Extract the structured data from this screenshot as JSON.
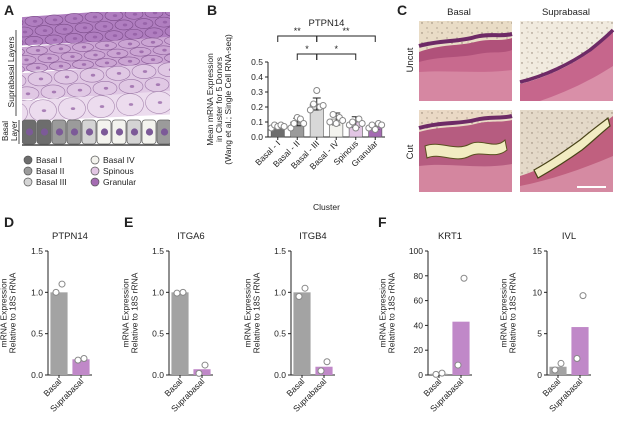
{
  "panels": {
    "A": {
      "letter": "A",
      "suprabasal_layers": "Suprabasal Layers",
      "basal_layer": "Basal\nLayer",
      "legend": [
        {
          "label": "Basal I",
          "color": "#6d6d6d"
        },
        {
          "label": "Basal II",
          "color": "#9b9b9b"
        },
        {
          "label": "Basal III",
          "color": "#d4d4d4"
        },
        {
          "label": "Basal IV",
          "color": "#f3f3ee"
        },
        {
          "label": "Spinous",
          "color": "#e2c6e4"
        },
        {
          "label": "Granular",
          "color": "#a46bb2"
        }
      ]
    },
    "B": {
      "letter": "B"
    },
    "C": {
      "letter": "C",
      "col_basal": "Basal",
      "col_suprabasal": "Suprabasal",
      "row_uncut": "Uncut",
      "row_cut": "Cut"
    },
    "D": {
      "letter": "D"
    },
    "E": {
      "letter": "E"
    },
    "F": {
      "letter": "F"
    }
  },
  "colors": {
    "gray": "#a3a3a3",
    "purple": "#c088c8",
    "light_gray": "#dcdcdc"
  },
  "chart_data": [
    {
      "id": "B",
      "type": "bar",
      "title": "PTPN14",
      "xlabel": "Cluster",
      "ylabel": "Mean mRNA Expression\nin Cluster for 5 Donors\n(Wang et al.; Single Cell RNA-seq)",
      "categories": [
        "Basal - I",
        "Basal - II",
        "Basal - III",
        "Basal - IV",
        "Spinous",
        "Granular"
      ],
      "bar_colors": [
        "#6d6d6d",
        "#9b9b9b",
        "#d8d8d8",
        "#f3f3ee",
        "#e2c6e4",
        "#a46bb2"
      ],
      "values": [
        0.07,
        0.1,
        0.22,
        0.12,
        0.1,
        0.07
      ],
      "errors": [
        0.01,
        0.025,
        0.04,
        0.04,
        0.035,
        0.02
      ],
      "points": [
        [
          0.06,
          0.08,
          0.07,
          0.08,
          0.07
        ],
        [
          0.06,
          0.09,
          0.13,
          0.12,
          0.09
        ],
        [
          0.18,
          0.22,
          0.31,
          0.2,
          0.21
        ],
        [
          0.1,
          0.15,
          0.09,
          0.13,
          0.11
        ],
        [
          0.08,
          0.1,
          0.06,
          0.12,
          0.09
        ],
        [
          0.06,
          0.08,
          0.05,
          0.09,
          0.08
        ]
      ],
      "ylim": [
        0,
        0.5
      ],
      "yticks": [
        "0.0",
        "0.1",
        "0.2",
        "0.3",
        "0.4",
        "0.5"
      ],
      "significance": [
        "**",
        "**",
        "*",
        "*"
      ]
    },
    {
      "id": "D",
      "type": "bar",
      "title": "PTPN14",
      "ylabel": "mRNA Expression\nRelative to 18S rRNA",
      "categories": [
        "Basal",
        "Suprabasal"
      ],
      "values": [
        1.0,
        0.19
      ],
      "points": [
        [
          1.0,
          1.1
        ],
        [
          0.18,
          0.2
        ]
      ],
      "ylim": [
        0,
        1.5
      ],
      "yticks": [
        "0.0",
        "0.5",
        "1.0",
        "1.5"
      ]
    },
    {
      "id": "E1",
      "type": "bar",
      "title": "ITGA6",
      "ylabel": "mRNA Expression\nRelative to 18S rRNA",
      "categories": [
        "Basal",
        "Suprabasal"
      ],
      "values": [
        1.0,
        0.07
      ],
      "points": [
        [
          0.99,
          1.0
        ],
        [
          0.02,
          0.12
        ]
      ],
      "ylim": [
        0,
        1.5
      ],
      "yticks": [
        "0.0",
        "0.5",
        "1.0",
        "1.5"
      ]
    },
    {
      "id": "E2",
      "type": "bar",
      "title": "ITGB4",
      "ylabel": "mRNA Expression\nRelative to 18S rRNA",
      "categories": [
        "Basal",
        "Suprabasal"
      ],
      "values": [
        1.0,
        0.1
      ],
      "points": [
        [
          0.95,
          1.05
        ],
        [
          0.05,
          0.16
        ]
      ],
      "ylim": [
        0,
        1.5
      ],
      "yticks": [
        "0.0",
        "0.5",
        "1.0",
        "1.5"
      ]
    },
    {
      "id": "F1",
      "type": "bar",
      "title": "KRT1",
      "ylabel": "mRNA Expression\nRelative to 18S rRNA",
      "categories": [
        "Basal",
        "Suprabasal"
      ],
      "values": [
        1,
        43
      ],
      "points": [
        [
          0.5,
          1.5
        ],
        [
          8,
          78
        ]
      ],
      "ylim": [
        0,
        100
      ],
      "yticks": [
        "0",
        "20",
        "40",
        "60",
        "80",
        "100"
      ]
    },
    {
      "id": "F2",
      "type": "bar",
      "title": "IVL",
      "ylabel": "mRNA Expression\nRelative to 18S rRNA",
      "categories": [
        "Basal",
        "Suprabasal"
      ],
      "values": [
        1,
        5.8
      ],
      "points": [
        [
          0.6,
          1.4
        ],
        [
          2.0,
          9.6
        ]
      ],
      "ylim": [
        0,
        15
      ],
      "yticks": [
        "0",
        "5",
        "10",
        "15"
      ]
    }
  ]
}
